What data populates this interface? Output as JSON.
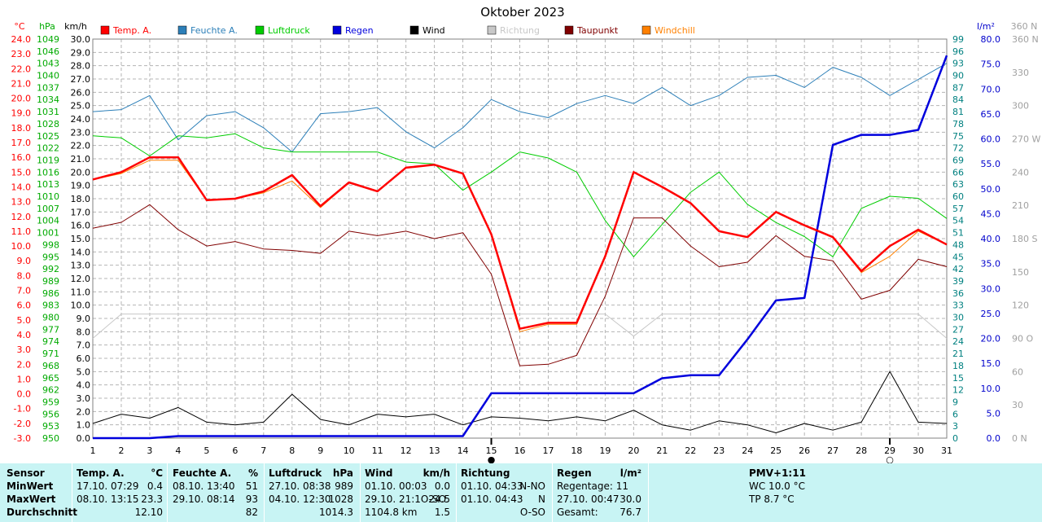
{
  "chart_data": {
    "type": "line",
    "title": "Oktober 2023",
    "x": [
      1,
      2,
      3,
      4,
      5,
      6,
      7,
      8,
      9,
      10,
      11,
      12,
      13,
      14,
      15,
      16,
      17,
      18,
      19,
      20,
      21,
      22,
      23,
      24,
      25,
      26,
      27,
      28,
      29,
      30,
      31
    ],
    "axes": {
      "temp": {
        "unit": "°C",
        "min": -3,
        "max": 24,
        "step": 1,
        "decimals": 1,
        "color": "#ff0000"
      },
      "hpa": {
        "unit": "hPa",
        "min": 950,
        "max": 1049,
        "step": 3,
        "color": "#00aa00"
      },
      "kmh": {
        "unit": "km/h",
        "min": 0,
        "max": 30,
        "step": 1,
        "decimals": 1,
        "color": "#000000"
      },
      "pct": {
        "min": 0,
        "max": 99,
        "step": 3,
        "color": "#008080"
      },
      "rain": {
        "unit": "l/m²",
        "min": 0,
        "max": 80,
        "step": 5,
        "decimals": 1,
        "color": "#0000cc"
      },
      "dir": {
        "unit": "360 N",
        "labels": [
          "0 N",
          "30",
          "60",
          "90 O",
          "120",
          "150",
          "180 S",
          "210",
          "240",
          "270 W",
          "300",
          "330",
          "360 N"
        ],
        "color": "#a0a0a0"
      }
    },
    "series": [
      {
        "name": "Temp. A.",
        "axis": "temp",
        "color": "#ff0000",
        "width": 2.5,
        "values": [
          14.5,
          15.0,
          16.0,
          16.0,
          13.1,
          13.2,
          13.7,
          14.8,
          12.7,
          14.3,
          13.7,
          15.3,
          15.5,
          14.9,
          10.8,
          4.4,
          4.8,
          4.8,
          9.3,
          15.0,
          14.0,
          12.9,
          11.0,
          10.6,
          12.3,
          11.4,
          10.6,
          8.3,
          10.0,
          11.1,
          10.1
        ]
      },
      {
        "name": "Feuchte A.",
        "axis": "pct",
        "color": "#2c7fb8",
        "width": 1,
        "values": [
          81,
          81.5,
          85,
          74,
          80,
          81,
          77,
          71,
          80.5,
          81,
          82,
          76,
          72,
          77,
          84,
          81,
          79.5,
          83,
          85,
          83,
          87,
          82.5,
          85,
          89.5,
          90,
          87,
          92,
          89.5,
          85,
          89,
          93
        ]
      },
      {
        "name": "Luftdruck",
        "axis": "hpa",
        "color": "#00cc00",
        "width": 1,
        "values": [
          1025,
          1024.5,
          1020,
          1025,
          1024.5,
          1025.5,
          1022,
          1021,
          1021,
          1021,
          1021,
          1018.5,
          1018,
          1011.5,
          1016,
          1021,
          1019.5,
          1016,
          1004,
          995,
          1003,
          1011,
          1016,
          1008,
          1003.5,
          1000,
          995,
          1007,
          1010,
          1009.5,
          1004.5
        ]
      },
      {
        "name": "Regen",
        "axis": "rain",
        "color": "#0000dd",
        "width": 2.5,
        "values": [
          0,
          0,
          0,
          0.4,
          0.4,
          0.4,
          0.4,
          0.4,
          0.4,
          0.4,
          0.4,
          0.4,
          0.4,
          0.4,
          9,
          9,
          9,
          9,
          9,
          9,
          12,
          12.6,
          12.6,
          19.8,
          27.6,
          28.1,
          58.8,
          60.8,
          60.8,
          61.8,
          76.7
        ]
      },
      {
        "name": "Wind",
        "axis": "kmh",
        "color": "#000000",
        "width": 1,
        "values": [
          1.1,
          1.8,
          1.5,
          2.3,
          1.2,
          1.0,
          1.2,
          3.3,
          1.4,
          1.0,
          1.8,
          1.6,
          1.8,
          1.0,
          1.6,
          1.5,
          1.3,
          1.6,
          1.3,
          2.1,
          1.0,
          0.6,
          1.3,
          1.0,
          0.4,
          1.1,
          0.6,
          1.2,
          5.0,
          1.2,
          1.1
        ]
      },
      {
        "name": "Richtung",
        "axis": "dir",
        "color": "#c8c8c8",
        "width": 1,
        "values": [
          90,
          112,
          112,
          112,
          112,
          112,
          112,
          112,
          112,
          112,
          112,
          112,
          112,
          112,
          112,
          112,
          112,
          112,
          112,
          92,
          112,
          112,
          112,
          112,
          112,
          112,
          112,
          112,
          112,
          112,
          90
        ]
      },
      {
        "name": "Taupunkt",
        "axis": "temp",
        "color": "#800000",
        "width": 1,
        "values": [
          11.2,
          11.6,
          12.8,
          11.1,
          10.0,
          10.3,
          9.8,
          9.7,
          9.5,
          11.0,
          10.7,
          11.0,
          10.5,
          10.9,
          8.1,
          1.9,
          2.0,
          2.6,
          6.6,
          11.9,
          11.9,
          10.0,
          8.6,
          8.9,
          10.7,
          9.3,
          9.0,
          6.4,
          7.0,
          9.1,
          8.6
        ]
      },
      {
        "name": "Windchill",
        "axis": "temp",
        "color": "#ff8000",
        "width": 1,
        "values": [
          14.5,
          14.9,
          15.8,
          15.8,
          13.1,
          13.2,
          13.6,
          14.4,
          12.6,
          14.3,
          13.7,
          15.3,
          15.5,
          14.9,
          10.8,
          4.2,
          4.7,
          4.7,
          9.3,
          15.0,
          14.0,
          12.9,
          11.0,
          10.6,
          12.3,
          11.4,
          10.6,
          8.2,
          9.3,
          11.0,
          10.1
        ]
      }
    ],
    "moon_markers": [
      {
        "day": 15,
        "symbol": "●"
      },
      {
        "day": 29,
        "symbol": "○"
      }
    ]
  },
  "stats": {
    "sensor": {
      "head": "Sensor",
      "rows": [
        "MinWert",
        "MaxWert",
        "Durchschnitt"
      ]
    },
    "temp": {
      "head": "Temp. A.",
      "unit": "°C",
      "min_time": "17.10.  07:29",
      "min_val": "0.4",
      "max_time": "08.10.  13:15",
      "max_val": "23.3",
      "avg": "12.10"
    },
    "feuchte": {
      "head": "Feuchte A.",
      "unit": "%",
      "min_time": "08.10.  13:40",
      "min_val": "51",
      "max_time": "29.10.  08:14",
      "max_val": "93",
      "avg": "82"
    },
    "druck": {
      "head": "Luftdruck",
      "unit": "hPa",
      "min_time": "27.10.  08:38",
      "min_val": "989",
      "max_time": "04.10.  12:30",
      "max_val": "1028",
      "avg": "1014.3"
    },
    "wind": {
      "head": "Wind",
      "unit": "km/h",
      "min_time": "01.10.  00:03",
      "min_val": "0.0",
      "max_time": "29.10.  21:1O-SO",
      "max_val": "24.5",
      "avg_dist": "1104.8 km",
      "avg": "1.5"
    },
    "richtung": {
      "head": "Richtung",
      "min_time": "01.10.  04:33",
      "min_val": "N-NO",
      "max_time": "01.10.  04:43",
      "max_val": "N",
      "avg": "O-SO"
    },
    "regen": {
      "head": "Regen",
      "unit": "l/m²",
      "tage": "Regentage: 11",
      "max_time": "27.10.  00:47",
      "max_val": "30.0",
      "gesamt_label": "Gesamt:",
      "gesamt": "76.7"
    },
    "pmv": {
      "head": "PMV+1:11",
      "wc": "WC 10.0 °C",
      "tp": "TP 8.7 °C"
    }
  }
}
